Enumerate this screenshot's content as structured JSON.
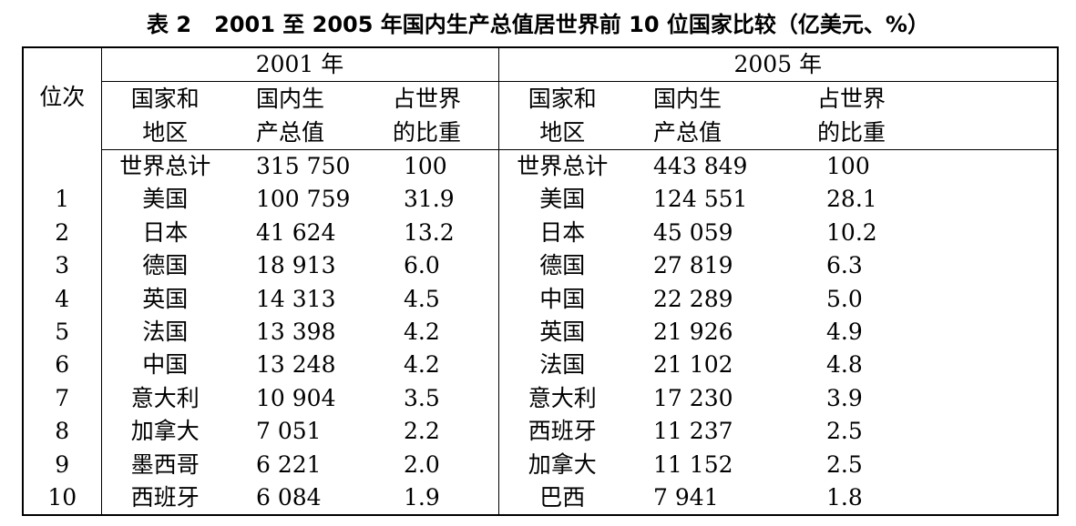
{
  "title": "表 2   2001 至 2005 年国内生产总值居世界前 10 位国家比较（亿美元、%）",
  "header": {
    "rank": "位次",
    "year_2001": "2001 年",
    "year_2005": "2005 年",
    "country_l1": "国家和",
    "country_l2": "地区",
    "gdp_l1": "国内生",
    "gdp_l2": "产总值",
    "share_l1": "占世界",
    "share_l2": "的比重"
  },
  "rows": [
    {
      "rank": "",
      "c2001": "世界总计",
      "g2001": "315 750",
      "s2001": "100",
      "c2005": "世界总计",
      "g2005": "443 849",
      "s2005": "100"
    },
    {
      "rank": "1",
      "c2001": "美国",
      "g2001": "100 759",
      "s2001": "31.9",
      "c2005": "美国",
      "g2005": "124 551",
      "s2005": "28.1"
    },
    {
      "rank": "2",
      "c2001": "日本",
      "g2001": "41 624",
      "s2001": "13.2",
      "c2005": "日本",
      "g2005": "45 059",
      "s2005": "10.2"
    },
    {
      "rank": "3",
      "c2001": "德国",
      "g2001": "18 913",
      "s2001": "6.0",
      "c2005": "德国",
      "g2005": "27 819",
      "s2005": "6.3"
    },
    {
      "rank": "4",
      "c2001": "英国",
      "g2001": "14 313",
      "s2001": "4.5",
      "c2005": "中国",
      "g2005": "22 289",
      "s2005": "5.0"
    },
    {
      "rank": "5",
      "c2001": "法国",
      "g2001": "13 398",
      "s2001": "4.2",
      "c2005": "英国",
      "g2005": "21 926",
      "s2005": "4.9"
    },
    {
      "rank": "6",
      "c2001": "中国",
      "g2001": "13 248",
      "s2001": "4.2",
      "c2005": "法国",
      "g2005": "21 102",
      "s2005": "4.8"
    },
    {
      "rank": "7",
      "c2001": "意大利",
      "g2001": "10 904",
      "s2001": "3.5",
      "c2005": "意大利",
      "g2005": "17 230",
      "s2005": "3.9"
    },
    {
      "rank": "8",
      "c2001": "加拿大",
      "g2001": "7 051",
      "s2001": "2.2",
      "c2005": "西班牙",
      "g2005": "11 237",
      "s2005": "2.5"
    },
    {
      "rank": "9",
      "c2001": "墨西哥",
      "g2001": "6 221",
      "s2001": "2.0",
      "c2005": "加拿大",
      "g2005": "11 152",
      "s2005": "2.5"
    },
    {
      "rank": "10",
      "c2001": "西班牙",
      "g2001": "6 084",
      "s2001": "1.9",
      "c2005": "巴西",
      "g2005": "7 941",
      "s2005": "1.8"
    }
  ]
}
